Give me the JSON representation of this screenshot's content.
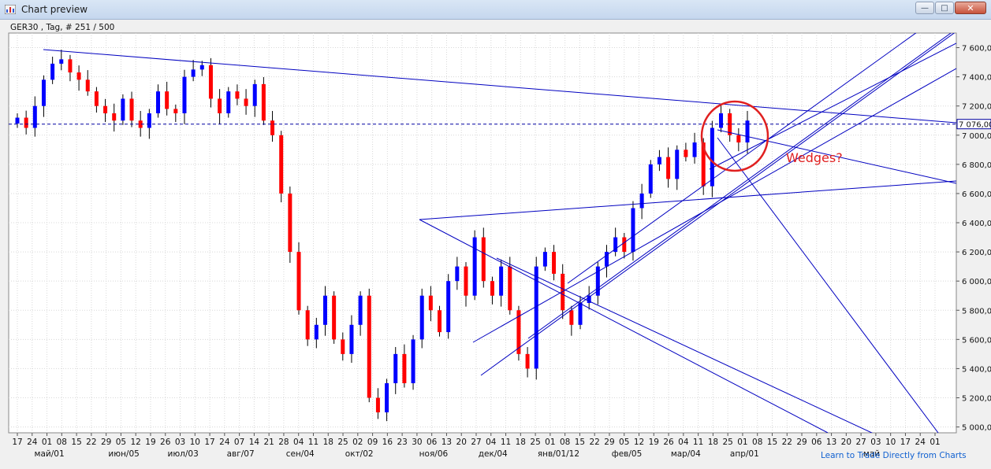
{
  "window": {
    "title": "Chart preview",
    "icons": [
      "chart-app-icon",
      "minimize-icon",
      "maximize-icon",
      "close-icon"
    ]
  },
  "chart_header": "GER30 , Tag, # 251 / 500",
  "footer_link": "Learn to Trade Directly from Charts",
  "annotation": "Wedges?",
  "current_price_label": "7 076,00",
  "colors": {
    "up_candle": "#0000ff",
    "down_candle": "#ff0000",
    "trendline": "#0000c0",
    "annotation": "#e02020",
    "price_line": "#0000a0"
  },
  "chart_data": {
    "type": "candlestick",
    "title": "",
    "xlabel": "",
    "ylabel": "",
    "ylim": [
      4960,
      7700
    ],
    "grid": true,
    "y_ticks": [
      "5 000,00",
      "5 200,00",
      "5 400,00",
      "5 600,00",
      "5 800,00",
      "6 000,00",
      "6 200,00",
      "6 400,00",
      "6 600,00",
      "6 800,00",
      "7 000,00",
      "7 200,00",
      "7 400,00",
      "7 600,00"
    ],
    "x_day_ticks": [
      "17",
      "24",
      "01",
      "08",
      "15",
      "22",
      "29",
      "05",
      "12",
      "19",
      "26",
      "03",
      "10",
      "17",
      "24",
      "07",
      "14",
      "21",
      "28",
      "04",
      "11",
      "18",
      "25",
      "02",
      "09",
      "16",
      "23",
      "30",
      "06",
      "13",
      "20",
      "27",
      "04",
      "11",
      "18",
      "25",
      "01",
      "08",
      "15",
      "22",
      "29",
      "05",
      "12",
      "19",
      "26",
      "04",
      "11",
      "18",
      "25",
      "01",
      "08",
      "15",
      "22",
      "29",
      "06",
      "13",
      "20",
      "27",
      "03",
      "10",
      "17",
      "24",
      "01"
    ],
    "x_month_labels": [
      "май/01",
      "июн/05",
      "июл/03",
      "авг/07",
      "сен/04",
      "окт/02",
      "ноя/06",
      "дек/04",
      "янв/01/12",
      "фев/05",
      "мар/04",
      "апр/01",
      "май"
    ],
    "current_price": 7076,
    "close_approx": [
      7120,
      7050,
      7200,
      7380,
      7490,
      7520,
      7430,
      7380,
      7300,
      7200,
      7150,
      7100,
      7250,
      7100,
      7050,
      7150,
      7300,
      7180,
      7150,
      7400,
      7450,
      7480,
      7250,
      7150,
      7300,
      7250,
      7200,
      7350,
      7100,
      7000,
      6600,
      6200,
      5800,
      5600,
      5700,
      5900,
      5600,
      5500,
      5700,
      5900,
      5200,
      5100,
      5300,
      5500,
      5300,
      5600,
      5900,
      5800,
      5650,
      6000,
      6100,
      5900,
      6300,
      6000,
      5900,
      6100,
      5800,
      5500,
      5400,
      6100,
      6200,
      6050,
      5800,
      5700,
      5850,
      5900,
      6100,
      6200,
      6300,
      6200,
      6500,
      6600,
      6800,
      6850,
      6700,
      6900,
      6850,
      6950,
      6650,
      7050,
      7150,
      7000,
      6950,
      7100
    ]
  }
}
